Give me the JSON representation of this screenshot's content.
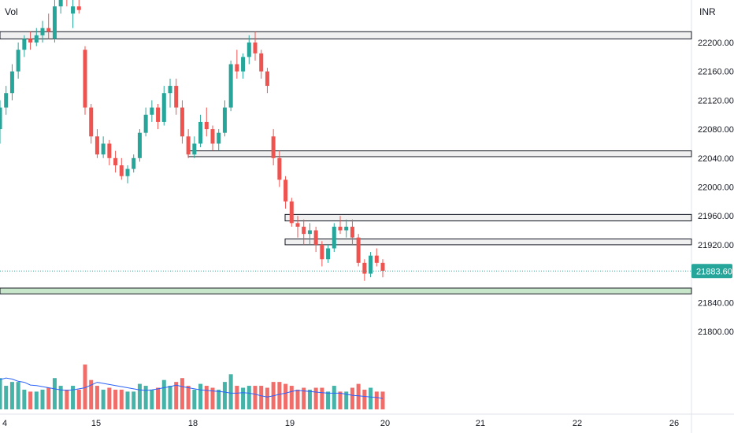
{
  "header": {
    "volume_label": "Vol",
    "currency_label": "INR"
  },
  "price_tag": {
    "value": "21883.60",
    "color": "#26a69a"
  },
  "colors": {
    "up": "#26a69a",
    "down": "#ef5350",
    "vol_ma": "#2962ff",
    "zone_fill": "#f0f0f0",
    "zone_border": "#131722",
    "support_zone_fill": "#c8e6c9",
    "text": "#131722"
  },
  "chart_data": {
    "type": "candlestick",
    "y_axis": {
      "ticks": [
        "22200.00",
        "22160.00",
        "22120.00",
        "22080.00",
        "22040.00",
        "22000.00",
        "21960.00",
        "21920.00",
        "21840.00",
        "21800.00"
      ],
      "range": [
        21760,
        22250
      ]
    },
    "x_axis": {
      "ticks": [
        "4",
        "15",
        "18",
        "19",
        "20",
        "21",
        "22",
        "26"
      ]
    },
    "last_price": 21883.6,
    "zones": [
      {
        "low": 22205,
        "high": 22215,
        "kind": "resistance",
        "from_x": "4"
      },
      {
        "low": 22042,
        "high": 22050,
        "kind": "resistance",
        "from_x": "18"
      },
      {
        "low": 21953,
        "high": 21962,
        "kind": "resistance",
        "from_x": "19"
      },
      {
        "low": 21920,
        "high": 21928,
        "kind": "resistance",
        "from_x": "19"
      },
      {
        "low": 21852,
        "high": 21860,
        "kind": "support",
        "from_x": "4"
      }
    ],
    "candles": [
      [
        22080,
        22120,
        22060,
        22110
      ],
      [
        22110,
        22140,
        22100,
        22130
      ],
      [
        22130,
        22170,
        22120,
        22160
      ],
      [
        22160,
        22200,
        22150,
        22190
      ],
      [
        22190,
        22210,
        22180,
        22205
      ],
      [
        22205,
        22215,
        22190,
        22200
      ],
      [
        22200,
        22220,
        22195,
        22210
      ],
      [
        22210,
        22230,
        22200,
        22220
      ],
      [
        22220,
        22240,
        22205,
        22215
      ],
      [
        22205,
        22260,
        22200,
        22250
      ],
      [
        22250,
        22280,
        22240,
        22270
      ],
      [
        22270,
        22280,
        22250,
        22260
      ],
      [
        22240,
        22260,
        22220,
        22250
      ],
      [
        22250,
        22270,
        22240,
        22245
      ],
      [
        22190,
        22195,
        22100,
        22110
      ],
      [
        22110,
        22115,
        22060,
        22070
      ],
      [
        22070,
        22080,
        22040,
        22045
      ],
      [
        22045,
        22070,
        22040,
        22060
      ],
      [
        22060,
        22065,
        22030,
        22040
      ],
      [
        22040,
        22050,
        22020,
        22030
      ],
      [
        22030,
        22040,
        22010,
        22015
      ],
      [
        22015,
        22030,
        22005,
        22025
      ],
      [
        22025,
        22045,
        22020,
        22040
      ],
      [
        22040,
        22080,
        22035,
        22075
      ],
      [
        22075,
        22110,
        22070,
        22100
      ],
      [
        22100,
        22120,
        22090,
        22110
      ],
      [
        22110,
        22115,
        22080,
        22090
      ],
      [
        22090,
        22140,
        22085,
        22130
      ],
      [
        22130,
        22150,
        22110,
        22140
      ],
      [
        22140,
        22150,
        22100,
        22110
      ],
      [
        22110,
        22120,
        22060,
        22070
      ],
      [
        22070,
        22080,
        22040,
        22045
      ],
      [
        22045,
        22070,
        22040,
        22060
      ],
      [
        22060,
        22100,
        22055,
        22090
      ],
      [
        22090,
        22110,
        22070,
        22080
      ],
      [
        22080,
        22085,
        22050,
        22060
      ],
      [
        22060,
        22080,
        22050,
        22075
      ],
      [
        22075,
        22120,
        22070,
        22110
      ],
      [
        22110,
        22175,
        22105,
        22170
      ],
      [
        22170,
        22190,
        22150,
        22160
      ],
      [
        22160,
        22185,
        22150,
        22180
      ],
      [
        22180,
        22210,
        22170,
        22200
      ],
      [
        22200,
        22215,
        22175,
        22185
      ],
      [
        22185,
        22190,
        22150,
        22160
      ],
      [
        22160,
        22165,
        22130,
        22140
      ],
      [
        22070,
        22080,
        22030,
        22040
      ],
      [
        22040,
        22050,
        22000,
        22010
      ],
      [
        22010,
        22015,
        21970,
        21980
      ],
      [
        21980,
        21985,
        21945,
        21950
      ],
      [
        21950,
        21960,
        21930,
        21945
      ],
      [
        21945,
        21955,
        21920,
        21935
      ],
      [
        21935,
        21950,
        21920,
        21940
      ],
      [
        21940,
        21945,
        21910,
        21920
      ],
      [
        21920,
        21925,
        21890,
        21900
      ],
      [
        21900,
        21920,
        21895,
        21915
      ],
      [
        21915,
        21950,
        21910,
        21945
      ],
      [
        21945,
        21960,
        21935,
        21940
      ],
      [
        21940,
        21955,
        21930,
        21945
      ],
      [
        21945,
        21955,
        21920,
        21930
      ],
      [
        21930,
        21935,
        21890,
        21895
      ],
      [
        21895,
        21900,
        21870,
        21880
      ],
      [
        21880,
        21910,
        21875,
        21905
      ],
      [
        21905,
        21915,
        21890,
        21895
      ],
      [
        21895,
        21900,
        21875,
        21884
      ]
    ],
    "volume_ma": [
      0.55,
      0.58,
      0.56,
      0.52,
      0.5,
      0.45,
      0.44,
      0.42,
      0.4,
      0.38,
      0.36,
      0.35,
      0.36,
      0.38,
      0.4,
      0.45,
      0.5,
      0.48,
      0.46,
      0.44,
      0.42,
      0.4,
      0.38,
      0.36,
      0.35,
      0.36,
      0.38,
      0.4,
      0.42,
      0.45,
      0.42,
      0.4,
      0.38,
      0.36,
      0.35,
      0.34,
      0.33,
      0.32,
      0.3,
      0.3,
      0.31,
      0.3,
      0.28,
      0.25,
      0.23,
      0.25,
      0.28,
      0.3,
      0.33,
      0.35,
      0.34,
      0.33,
      0.32,
      0.31,
      0.3,
      0.3,
      0.3,
      0.28,
      0.26,
      0.25,
      0.24,
      0.23,
      0.22,
      0.2
    ]
  }
}
